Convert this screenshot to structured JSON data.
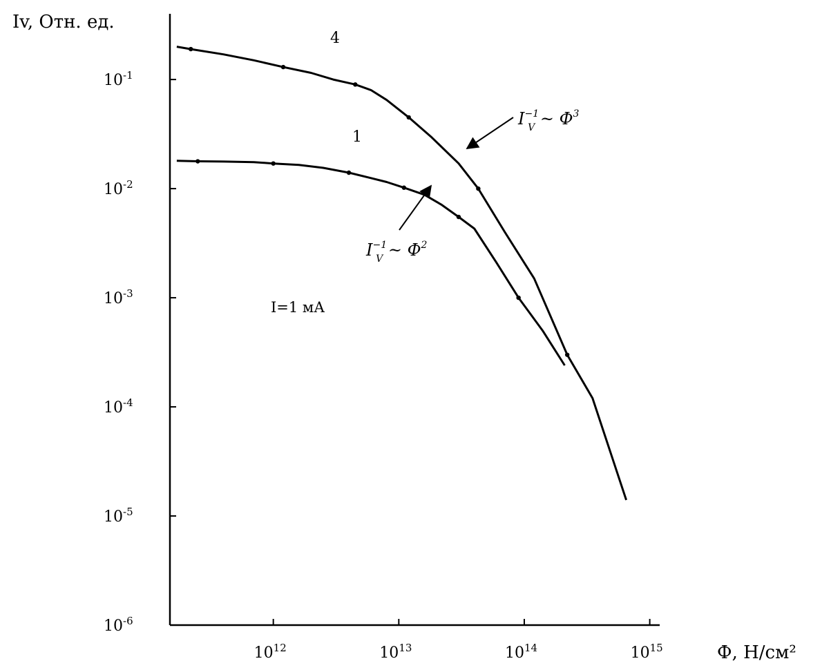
{
  "chart_data": {
    "type": "line",
    "title": "",
    "xlabel": "Ф, Н/см²",
    "ylabel": "Iv, Отн. ед.",
    "x_scale": "log",
    "y_scale": "log",
    "xlim": [
      150000000000.0,
      1200000000000000.0
    ],
    "ylim": [
      1e-06,
      0.4
    ],
    "grid": false,
    "x_ticks": [
      {
        "value": 1000000000000.0,
        "label": "10",
        "exp": "12"
      },
      {
        "value": 10000000000000.0,
        "label": "10",
        "exp": "13"
      },
      {
        "value": 100000000000000.0,
        "label": "10",
        "exp": "14"
      },
      {
        "value": 1000000000000000.0,
        "label": "10",
        "exp": "15"
      }
    ],
    "y_ticks": [
      {
        "value": 0.1,
        "label": "10",
        "exp": "-1"
      },
      {
        "value": 0.01,
        "label": "10",
        "exp": "-2"
      },
      {
        "value": 0.001,
        "label": "10",
        "exp": "-3"
      },
      {
        "value": 0.0001,
        "label": "10",
        "exp": "-4"
      },
      {
        "value": 1e-05,
        "label": "10",
        "exp": "-5"
      },
      {
        "value": 1e-06,
        "label": "10",
        "exp": "-6"
      }
    ],
    "series": [
      {
        "name": "4",
        "x": [
          170000000000.0,
          220000000000.0,
          400000000000.0,
          700000000000.0,
          1200000000000.0,
          2000000000000.0,
          3000000000000.0,
          4500000000000.0,
          6000000000000.0,
          8000000000000.0,
          12000000000000.0,
          18000000000000.0,
          30000000000000.0,
          43000000000000.0,
          70000000000000.0,
          120000000000000.0,
          220000000000000.0,
          350000000000000.0,
          650000000000000.0
        ],
        "y": [
          0.2,
          0.19,
          0.17,
          0.15,
          0.13,
          0.115,
          0.1,
          0.09,
          0.08,
          0.065,
          0.045,
          0.03,
          0.017,
          0.01,
          0.004,
          0.0015,
          0.0003,
          0.00012,
          1.4e-05
        ]
      },
      {
        "name": "1",
        "x": [
          170000000000.0,
          250000000000.0,
          400000000000.0,
          700000000000.0,
          1000000000000.0,
          1600000000000.0,
          2500000000000.0,
          4000000000000.0,
          6000000000000.0,
          8000000000000.0,
          11000000000000.0,
          16000000000000.0,
          22000000000000.0,
          30000000000000.0,
          40000000000000.0,
          60000000000000.0,
          90000000000000.0,
          140000000000000.0,
          210000000000000.0
        ],
        "y": [
          0.018,
          0.0178,
          0.0177,
          0.0175,
          0.017,
          0.0165,
          0.0155,
          0.014,
          0.0125,
          0.0115,
          0.0102,
          0.0088,
          0.0071,
          0.0055,
          0.0043,
          0.0021,
          0.001,
          0.0005,
          0.00024
        ]
      }
    ],
    "annotations": [
      {
        "base": "I",
        "sub": "V",
        "sup": "−1",
        "rest": " ~ Ф",
        "power": "3"
      },
      {
        "base": "I",
        "sub": "V",
        "sup": "−1",
        "rest": " ~ Ф",
        "power": "2"
      }
    ],
    "note": "I=1 мА"
  }
}
